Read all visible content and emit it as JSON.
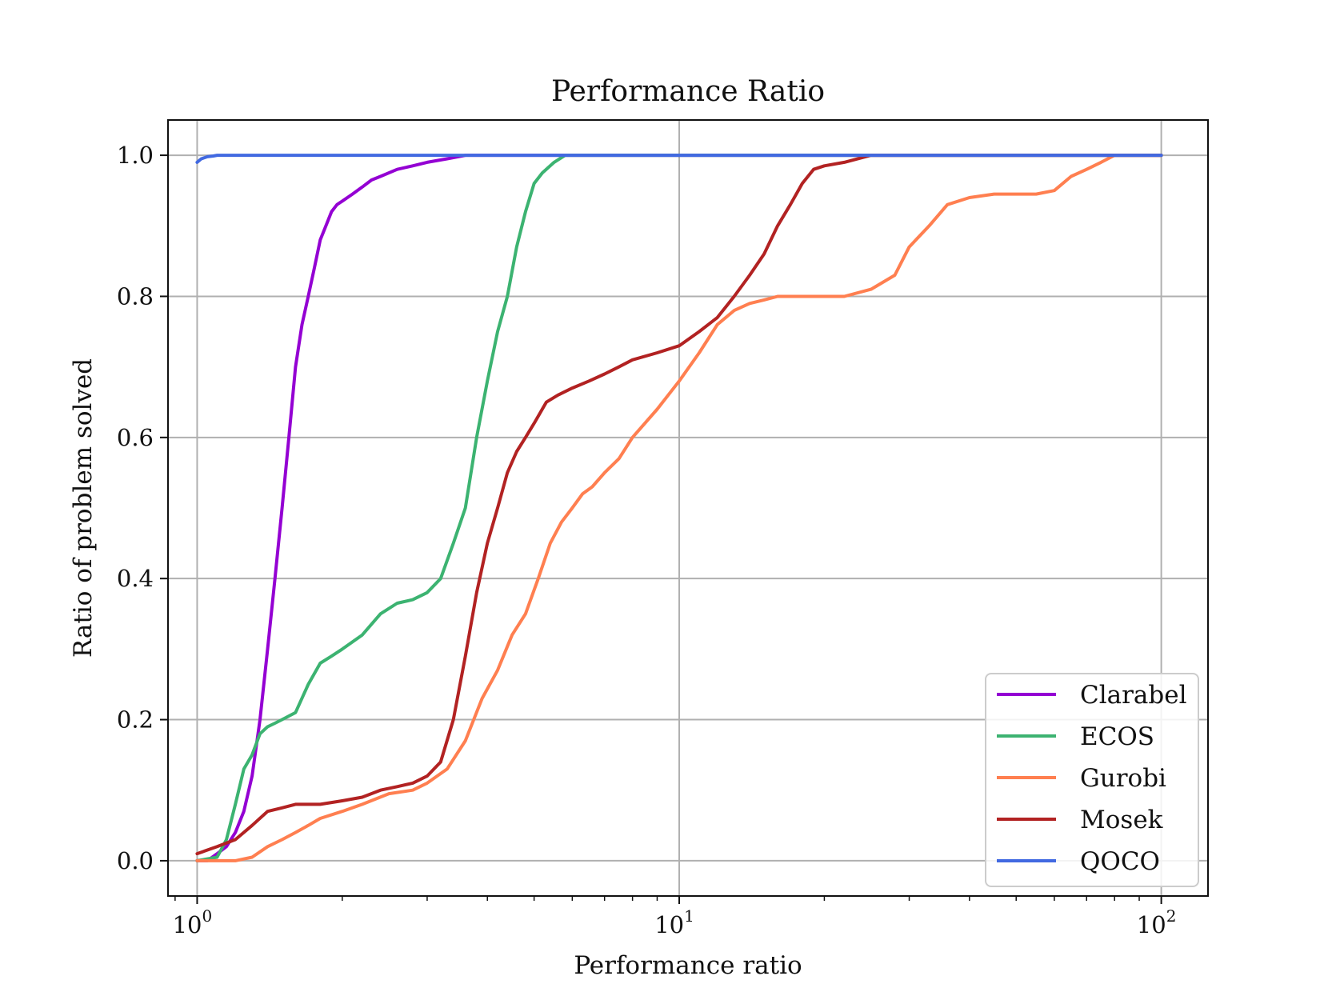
{
  "chart_data": {
    "type": "line",
    "title": "Performance Ratio",
    "xlabel": "Performance ratio",
    "ylabel": "Ratio of problem solved",
    "xscale": "log",
    "xlim": [
      0.87,
      125
    ],
    "ylim": [
      -0.05,
      1.05
    ],
    "grid": true,
    "legend_position": "lower-right",
    "x_ticks": [
      {
        "value": 1,
        "base": "10",
        "exp": "0"
      },
      {
        "value": 10,
        "base": "10",
        "exp": "1"
      },
      {
        "value": 100,
        "base": "10",
        "exp": "2"
      }
    ],
    "y_ticks": [
      {
        "value": 0.0,
        "label": "0.0"
      },
      {
        "value": 0.2,
        "label": "0.2"
      },
      {
        "value": 0.4,
        "label": "0.4"
      },
      {
        "value": 0.6,
        "label": "0.6"
      },
      {
        "value": 0.8,
        "label": "0.8"
      },
      {
        "value": 1.0,
        "label": "1.0"
      }
    ],
    "series": [
      {
        "name": "Clarabel",
        "color": "#9400D3",
        "x": [
          1.0,
          1.05,
          1.1,
          1.15,
          1.2,
          1.25,
          1.3,
          1.35,
          1.4,
          1.45,
          1.5,
          1.55,
          1.6,
          1.65,
          1.7,
          1.75,
          1.8,
          1.85,
          1.9,
          1.95,
          2.0,
          2.1,
          2.2,
          2.3,
          2.4,
          2.6,
          2.8,
          3.0,
          3.3,
          3.6,
          4.0,
          100
        ],
        "y": [
          0.0,
          0.0,
          0.01,
          0.02,
          0.04,
          0.07,
          0.12,
          0.2,
          0.3,
          0.4,
          0.5,
          0.6,
          0.7,
          0.76,
          0.8,
          0.84,
          0.88,
          0.9,
          0.92,
          0.93,
          0.935,
          0.945,
          0.955,
          0.965,
          0.97,
          0.98,
          0.985,
          0.99,
          0.995,
          1.0,
          1.0,
          1.0
        ]
      },
      {
        "name": "ECOS",
        "color": "#3CB371",
        "x": [
          1.0,
          1.1,
          1.15,
          1.2,
          1.25,
          1.3,
          1.35,
          1.4,
          1.45,
          1.5,
          1.6,
          1.7,
          1.8,
          1.9,
          2.0,
          2.2,
          2.4,
          2.6,
          2.8,
          3.0,
          3.2,
          3.4,
          3.6,
          3.8,
          4.0,
          4.2,
          4.4,
          4.6,
          4.8,
          5.0,
          5.2,
          5.5,
          5.8,
          6.0,
          100
        ],
        "y": [
          0.0,
          0.005,
          0.03,
          0.08,
          0.13,
          0.15,
          0.18,
          0.19,
          0.195,
          0.2,
          0.21,
          0.25,
          0.28,
          0.29,
          0.3,
          0.32,
          0.35,
          0.365,
          0.37,
          0.38,
          0.4,
          0.45,
          0.5,
          0.6,
          0.68,
          0.75,
          0.8,
          0.87,
          0.92,
          0.96,
          0.975,
          0.99,
          1.0,
          1.0,
          1.0
        ]
      },
      {
        "name": "Gurobi",
        "color": "#FF7F50",
        "x": [
          1.0,
          1.2,
          1.3,
          1.4,
          1.5,
          1.6,
          1.7,
          1.8,
          2.0,
          2.2,
          2.5,
          2.8,
          3.0,
          3.3,
          3.6,
          3.9,
          4.2,
          4.5,
          4.8,
          5.1,
          5.4,
          5.7,
          6.0,
          6.3,
          6.6,
          7.0,
          7.5,
          8.0,
          9.0,
          10.0,
          11.0,
          12.0,
          13.0,
          14.0,
          15.0,
          16.0,
          18.0,
          20.0,
          22.0,
          25.0,
          28.0,
          30.0,
          33.0,
          36.0,
          40.0,
          45.0,
          50.0,
          55.0,
          60.0,
          65.0,
          70.0,
          75.0,
          80.0,
          100
        ],
        "y": [
          0.0,
          0.0,
          0.005,
          0.02,
          0.03,
          0.04,
          0.05,
          0.06,
          0.07,
          0.08,
          0.095,
          0.1,
          0.11,
          0.13,
          0.17,
          0.23,
          0.27,
          0.32,
          0.35,
          0.4,
          0.45,
          0.48,
          0.5,
          0.52,
          0.53,
          0.55,
          0.57,
          0.6,
          0.64,
          0.68,
          0.72,
          0.76,
          0.78,
          0.79,
          0.795,
          0.8,
          0.8,
          0.8,
          0.8,
          0.81,
          0.83,
          0.87,
          0.9,
          0.93,
          0.94,
          0.945,
          0.945,
          0.945,
          0.95,
          0.97,
          0.98,
          0.99,
          1.0,
          1.0
        ]
      },
      {
        "name": "Mosek",
        "color": "#B22222",
        "x": [
          1.0,
          1.1,
          1.2,
          1.3,
          1.4,
          1.5,
          1.6,
          1.8,
          2.0,
          2.2,
          2.4,
          2.6,
          2.8,
          3.0,
          3.2,
          3.4,
          3.6,
          3.8,
          4.0,
          4.2,
          4.4,
          4.6,
          4.8,
          5.0,
          5.3,
          5.6,
          6.0,
          6.5,
          7.0,
          7.5,
          8.0,
          9.0,
          10.0,
          11.0,
          12.0,
          13.0,
          14.0,
          15.0,
          16.0,
          17.0,
          18.0,
          19.0,
          20.0,
          22.0,
          25.0,
          100
        ],
        "y": [
          0.01,
          0.02,
          0.03,
          0.05,
          0.07,
          0.075,
          0.08,
          0.08,
          0.085,
          0.09,
          0.1,
          0.105,
          0.11,
          0.12,
          0.14,
          0.2,
          0.29,
          0.38,
          0.45,
          0.5,
          0.55,
          0.58,
          0.6,
          0.62,
          0.65,
          0.66,
          0.67,
          0.68,
          0.69,
          0.7,
          0.71,
          0.72,
          0.73,
          0.75,
          0.77,
          0.8,
          0.83,
          0.86,
          0.9,
          0.93,
          0.96,
          0.98,
          0.985,
          0.99,
          1.0,
          1.0
        ]
      },
      {
        "name": "QOCO",
        "color": "#4169E1",
        "x": [
          1.0,
          1.02,
          1.05,
          1.08,
          1.1,
          100
        ],
        "y": [
          0.99,
          0.995,
          0.998,
          0.999,
          1.0,
          1.0
        ]
      }
    ]
  }
}
